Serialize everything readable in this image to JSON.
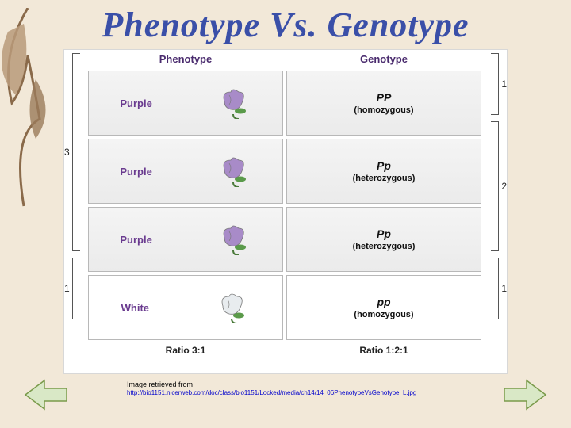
{
  "title": "Phenotype Vs. Genotype",
  "diagram": {
    "headers": {
      "left": "Phenotype",
      "right": "Genotype"
    },
    "rows": [
      {
        "pheno": "Purple",
        "flower_color": "#a88bc8",
        "geno_sym": "PP",
        "geno_zy": "(homozygous)",
        "white_bg": false
      },
      {
        "pheno": "Purple",
        "flower_color": "#a88bc8",
        "geno_sym": "Pp",
        "geno_zy": "(heterozygous)",
        "white_bg": false
      },
      {
        "pheno": "Purple",
        "flower_color": "#a88bc8",
        "geno_sym": "Pp",
        "geno_zy": "(heterozygous)",
        "white_bg": false
      },
      {
        "pheno": "White",
        "flower_color": "#e8ecef",
        "geno_sym": "pp",
        "geno_zy": "(homozygous)",
        "white_bg": true
      }
    ],
    "left_brackets": [
      {
        "count": "3",
        "span": [
          0,
          2
        ]
      },
      {
        "count": "1",
        "span": [
          3,
          3
        ]
      }
    ],
    "right_brackets": [
      {
        "count": "1",
        "span": [
          0,
          0
        ]
      },
      {
        "count": "2",
        "span": [
          1,
          2
        ]
      },
      {
        "count": "1",
        "span": [
          3,
          3
        ]
      }
    ],
    "ratio_left": "Ratio 3:1",
    "ratio_right": "Ratio 1:2:1"
  },
  "caption": {
    "prefix": "Image retrieved from",
    "url": "http://bio1151.nicerweb.com/doc/class/bio1151/Locked/media/ch14/14_06PhenotypeVsGenotype_L.jpg"
  },
  "colors": {
    "title": "#3a4fa8",
    "header_text": "#4a2b6e",
    "pheno_text": "#6a3b8f",
    "nav_arrow_fill": "#d9e8c6",
    "nav_arrow_stroke": "#7a9a4a"
  }
}
